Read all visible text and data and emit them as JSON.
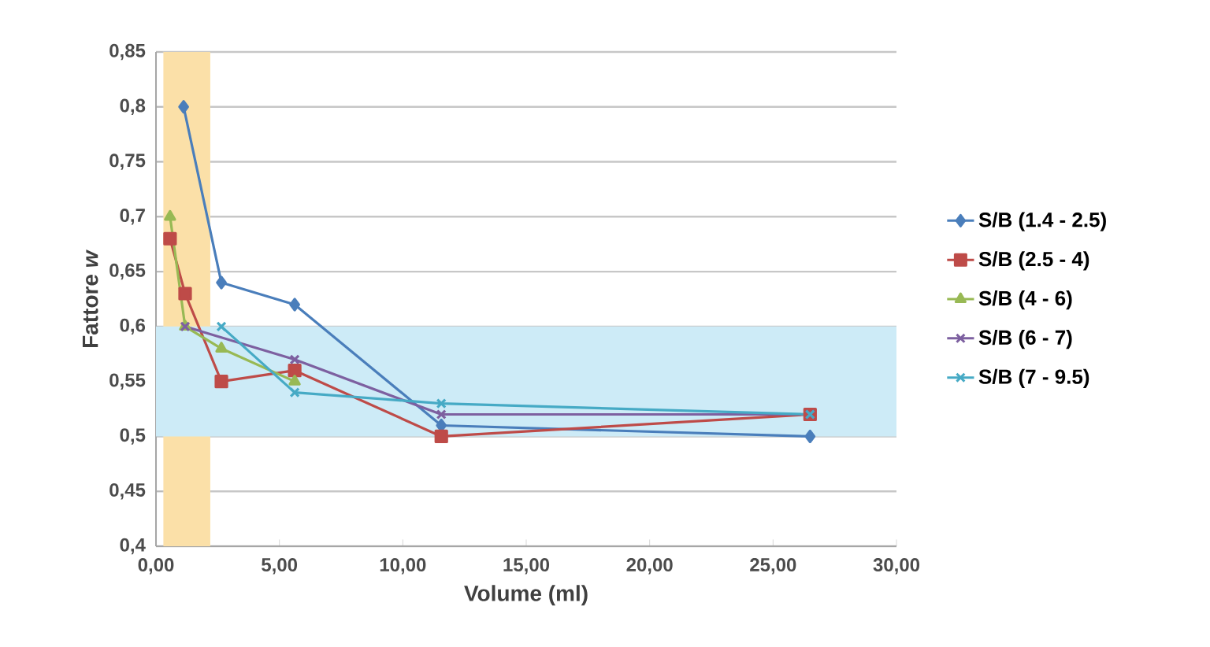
{
  "chart_data": {
    "type": "line",
    "xlabel": "Volume (ml)",
    "ylabel": "Fattore *w*",
    "xlim": [
      0,
      30
    ],
    "ylim": [
      0.4,
      0.85
    ],
    "xticks": [
      {
        "value": 0,
        "label": "0,00"
      },
      {
        "value": 5,
        "label": "5,00"
      },
      {
        "value": 10,
        "label": "10,00"
      },
      {
        "value": 15,
        "label": "15,00"
      },
      {
        "value": 20,
        "label": "20,00"
      },
      {
        "value": 25,
        "label": "25,00"
      },
      {
        "value": 30,
        "label": "30,00"
      }
    ],
    "yticks": [
      {
        "value": 0.4,
        "label": "0,4"
      },
      {
        "value": 0.45,
        "label": "0,45"
      },
      {
        "value": 0.5,
        "label": "0,5"
      },
      {
        "value": 0.55,
        "label": "0,55"
      },
      {
        "value": 0.6,
        "label": "0,6"
      },
      {
        "value": 0.65,
        "label": "0,65"
      },
      {
        "value": 0.7,
        "label": "0,7"
      },
      {
        "value": 0.75,
        "label": "0,75"
      },
      {
        "value": 0.8,
        "label": "0,8"
      },
      {
        "value": 0.85,
        "label": "0,85"
      }
    ],
    "grid": "y",
    "legend": "right",
    "line_style": "solid",
    "bands": [
      {
        "axis": "x",
        "from": 0.3,
        "to": 2.2,
        "color": "#fbe0a8"
      },
      {
        "axis": "y",
        "from": 0.5,
        "to": 0.6,
        "color": "#cdebf7"
      }
    ],
    "series": [
      {
        "name": "S/B (1.4 - 2.5)",
        "color": "#4a7ebb",
        "marker": "diamond",
        "x": [
          1.12,
          2.65,
          5.62,
          11.56,
          26.5
        ],
        "values": [
          0.8,
          0.64,
          0.62,
          0.51,
          0.5
        ]
      },
      {
        "name": "S/B (2.5 - 4)",
        "color": "#be4b48",
        "marker": "square",
        "x": [
          0.57,
          1.18,
          2.65,
          5.62,
          11.56,
          26.5
        ],
        "values": [
          0.68,
          0.63,
          0.55,
          0.56,
          0.5,
          0.52
        ]
      },
      {
        "name": "S/B (4 - 6)",
        "color": "#98b954",
        "marker": "triangle",
        "x": [
          0.57,
          1.18,
          2.65,
          5.62
        ],
        "values": [
          0.7,
          0.6,
          0.58,
          0.55
        ]
      },
      {
        "name": "S/B (6 - 7)",
        "color": "#7d60a0",
        "marker": "cross",
        "x": [
          1.18,
          5.62,
          11.56,
          26.5
        ],
        "values": [
          0.6,
          0.57,
          0.52,
          0.52
        ]
      },
      {
        "name": "S/B (7 - 9.5)",
        "color": "#46aac5",
        "marker": "cross",
        "x": [
          2.65,
          5.62,
          11.56,
          26.5
        ],
        "values": [
          0.6,
          0.54,
          0.53,
          0.52
        ]
      }
    ]
  }
}
